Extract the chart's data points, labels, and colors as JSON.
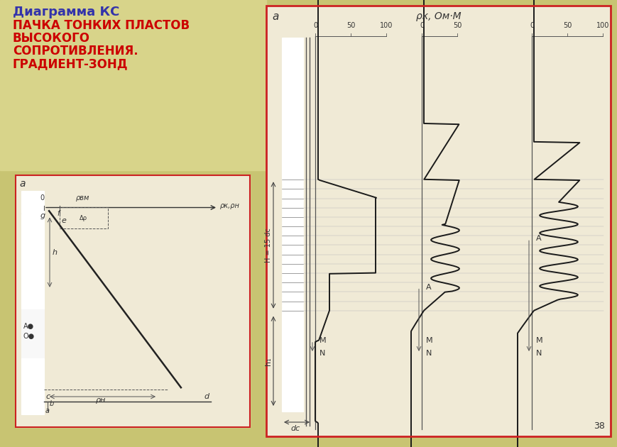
{
  "title_line1": "Диаграмма КС",
  "title_line2": "ПАЧКА ТОНКИХ ПЛАСТОВ",
  "title_line3": "ВЫСОКОГО",
  "title_line4": "СОПРОТИВЛЕНИЯ.",
  "title_line5": "ГРАДИЕНТ-ЗОНД",
  "bg_olive": "#c8c472",
  "bg_cream": "#f0ead6",
  "bg_light_olive": "#d8d48a",
  "border_red": "#cc2222",
  "text_dark": "#333333",
  "text_blue": "#3333aa",
  "text_red": "#cc0000",
  "page_number": "38"
}
